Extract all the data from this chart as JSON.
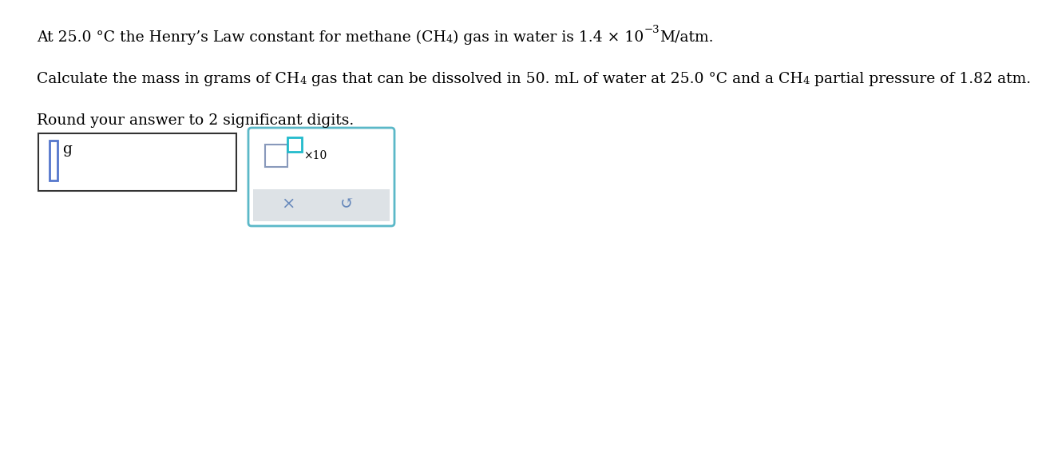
{
  "bg_color": "#ffffff",
  "text_color": "#000000",
  "font_size": 13.5,
  "font_size_small": 9.5,
  "line1_part1": "At 25.0 °C the Henry’s Law constant for methane ",
  "line1_ch4": "(CH",
  "line1_sub4": "4",
  "line1_rparen": ")",
  "line1_part2": " gas in water is 1.4 × 10",
  "line1_exp": "−3",
  "line1_part3": "M/atm.",
  "line2_part1": "Calculate the mass in grams of CH",
  "line2_sub4a": "4",
  "line2_part2": " gas that can be dissolved in 50. mL of water at 25.0 °C and a CH",
  "line2_sub4b": "4",
  "line2_part3": " partial pressure of 1.82 atm.",
  "line3": "Round your answer to 2 significant digits.",
  "box1_border": "#333333",
  "box2_border": "#5bb8c8",
  "cursor_color": "#5577cc",
  "mantissa_box_color": "#8899bb",
  "exp_box_color": "#22bbcc",
  "bottom_bg": "#dde2e6",
  "symbol_color": "#6688bb",
  "x_symbol": "×",
  "undo_symbol": "↺",
  "x10_text": "×10"
}
